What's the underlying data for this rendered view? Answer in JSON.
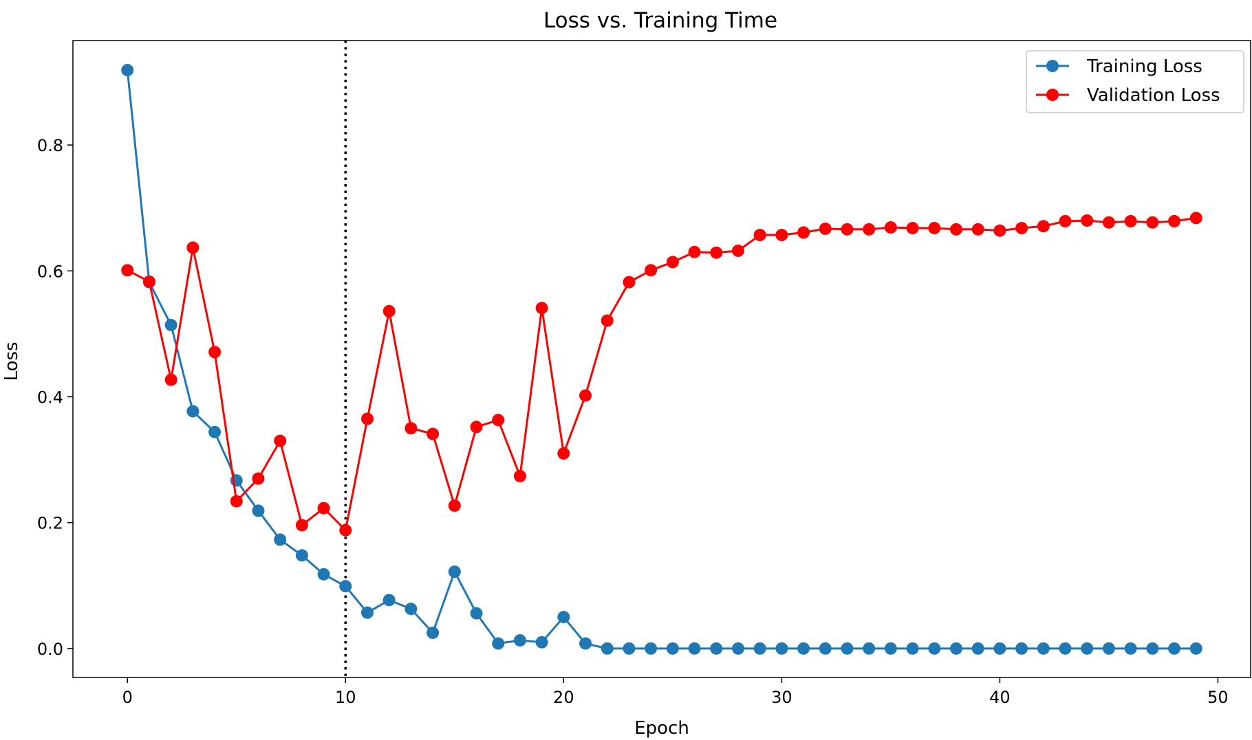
{
  "chart_data": {
    "type": "line",
    "title": "Loss vs. Training Time",
    "xlabel": "Epoch",
    "ylabel": "Loss",
    "xlim": [
      -2.5,
      51.5
    ],
    "ylim": [
      -0.046,
      0.966
    ],
    "xticks": [
      0,
      10,
      20,
      30,
      40,
      50
    ],
    "yticks": [
      0.0,
      0.2,
      0.4,
      0.6,
      0.8
    ],
    "xtick_labels": [
      "0",
      "10",
      "20",
      "30",
      "40",
      "50"
    ],
    "ytick_labels": [
      "0.0",
      "0.2",
      "0.4",
      "0.6",
      "0.8"
    ],
    "grid": false,
    "legend_position": "top-right",
    "vline": {
      "x": 10,
      "style": "dotted",
      "color": "#000000"
    },
    "x": [
      0,
      1,
      2,
      3,
      4,
      5,
      6,
      7,
      8,
      9,
      10,
      11,
      12,
      13,
      14,
      15,
      16,
      17,
      18,
      19,
      20,
      21,
      22,
      23,
      24,
      25,
      26,
      27,
      28,
      29,
      30,
      31,
      32,
      33,
      34,
      35,
      36,
      37,
      38,
      39,
      40,
      41,
      42,
      43,
      44,
      45,
      46,
      47,
      48,
      49
    ],
    "series": [
      {
        "name": "Training Loss",
        "color": "#1f77b4",
        "values": [
          0.919,
          0.582,
          0.514,
          0.377,
          0.344,
          0.267,
          0.219,
          0.173,
          0.148,
          0.118,
          0.099,
          0.057,
          0.077,
          0.063,
          0.025,
          0.122,
          0.056,
          0.008,
          0.013,
          0.01,
          0.05,
          0.008,
          0.0,
          0.0,
          0.0,
          0.0,
          0.0,
          0.0,
          0.0,
          0.0,
          0.0,
          0.0,
          0.0,
          0.0,
          0.0,
          0.0,
          0.0,
          0.0,
          0.0,
          0.0,
          0.0,
          0.0,
          0.0,
          0.0,
          0.0,
          0.0,
          0.0,
          0.0,
          0.0,
          0.0
        ]
      },
      {
        "name": "Validation Loss",
        "color": "#ff0000",
        "values": [
          0.601,
          0.583,
          0.427,
          0.637,
          0.471,
          0.234,
          0.27,
          0.33,
          0.196,
          0.223,
          0.188,
          0.365,
          0.536,
          0.35,
          0.341,
          0.227,
          0.352,
          0.363,
          0.274,
          0.541,
          0.31,
          0.402,
          0.521,
          0.582,
          0.601,
          0.614,
          0.63,
          0.629,
          0.632,
          0.657,
          0.657,
          0.661,
          0.667,
          0.666,
          0.666,
          0.669,
          0.668,
          0.668,
          0.666,
          0.666,
          0.664,
          0.668,
          0.671,
          0.679,
          0.68,
          0.677,
          0.679,
          0.677,
          0.679,
          0.684
        ]
      }
    ]
  }
}
